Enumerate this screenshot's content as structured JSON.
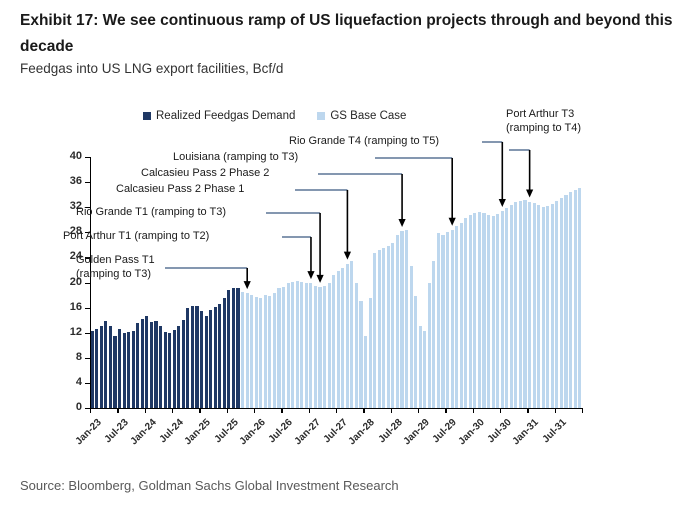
{
  "header": {
    "title": "Exhibit 17: We see continuous ramp of US liquefaction projects through and beyond this decade",
    "subtitle": "Feedgas into US LNG export facilities, Bcf/d"
  },
  "legend": [
    {
      "label": "Realized Feedgas Demand",
      "color": "#1F3864"
    },
    {
      "label": "GS Base Case",
      "color": "#BDD7EE"
    }
  ],
  "source": "Source: Bloomberg, Goldman Sachs Global Investment Research",
  "colors": {
    "realized": "#1F3864",
    "forecast": "#BDD7EE",
    "connector": "#8497B0",
    "arrow": "#000000"
  },
  "chart_data": {
    "type": "bar",
    "title": "Feedgas into US LNG export facilities",
    "ylabel": "Bcf/d",
    "ylim": [
      0,
      40
    ],
    "ytick_step": 4,
    "yticks": [
      0,
      4,
      8,
      12,
      16,
      20,
      24,
      28,
      32,
      36,
      40
    ],
    "x_start_month": "Jan-23",
    "x_end_month": "Dec-31",
    "x_tick_labels": [
      "Jan-23",
      "Jul-23",
      "Jan-24",
      "Jul-24",
      "Jan-25",
      "Jul-25",
      "Jan-26",
      "Jul-26",
      "Jan-27",
      "Jul-27",
      "Jan-28",
      "Jul-28",
      "Jan-29",
      "Jul-29",
      "Jan-30",
      "Jul-30",
      "Jan-31",
      "Jul-31"
    ],
    "grid": false,
    "legend_position": "top",
    "series": [
      {
        "name": "Realized Feedgas Demand",
        "start_month": "Jan-23",
        "values": [
          12.2,
          12.6,
          13.0,
          13.9,
          13.0,
          11.4,
          12.6,
          12.0,
          12.1,
          12.3,
          13.5,
          14.2,
          14.6,
          13.7,
          13.8,
          13.0,
          12.1,
          11.9,
          12.4,
          13.0,
          14.0,
          15.9,
          16.2,
          16.3,
          15.4,
          14.7,
          15.6,
          16.1,
          16.5,
          17.5,
          18.8,
          19.2,
          19.1
        ]
      },
      {
        "name": "GS Base Case",
        "start_month": "Oct-25",
        "values": [
          18.5,
          18.3,
          18.0,
          17.7,
          17.6,
          18.0,
          17.9,
          18.3,
          19.1,
          19.3,
          20.0,
          20.1,
          20.2,
          20.1,
          20.0,
          19.9,
          19.4,
          19.3,
          19.4,
          19.9,
          21.2,
          21.8,
          22.3,
          23.0,
          23.4,
          19.9,
          17.0,
          11.4,
          17.5,
          24.7,
          25.2,
          25.5,
          25.8,
          26.3,
          27.5,
          28.2,
          28.4,
          22.6,
          17.8,
          13.0,
          12.2,
          19.9,
          23.4,
          27.9,
          27.6,
          28.0,
          28.4,
          29.0,
          29.5,
          30.3,
          30.8,
          31.0,
          31.2,
          31.0,
          30.8,
          30.6,
          30.9,
          31.4,
          31.9,
          32.4,
          32.8,
          33.0,
          33.1,
          32.9,
          32.6,
          32.3,
          32.0,
          32.2,
          32.5,
          33.0,
          33.5,
          34.0,
          34.4,
          34.8,
          35.1
        ]
      }
    ],
    "annotations": [
      {
        "label": "Golden Pass T1\n(ramping to T3)",
        "target_month": "Nov-25"
      },
      {
        "label": "Port Arthur T1 (ramping to T2)",
        "target_month": "Jan-27"
      },
      {
        "label": "Rio Grande T1 (ramping to T3)",
        "target_month": "Mar-27"
      },
      {
        "label": "Calcasieu Pass 2 Phase 1",
        "target_month": "Sep-27"
      },
      {
        "label": "Calcasieu Pass 2 Phase 2",
        "target_month": "Sep-28"
      },
      {
        "label": "Louisiana (ramping to T3)",
        "target_month": "Aug-29"
      },
      {
        "label": "Rio Grande T4 (ramping to T5)",
        "target_month": "Jul-30"
      },
      {
        "label": "Port Arthur T3\n(ramping to T4)",
        "target_month": "Jan-31"
      }
    ]
  }
}
